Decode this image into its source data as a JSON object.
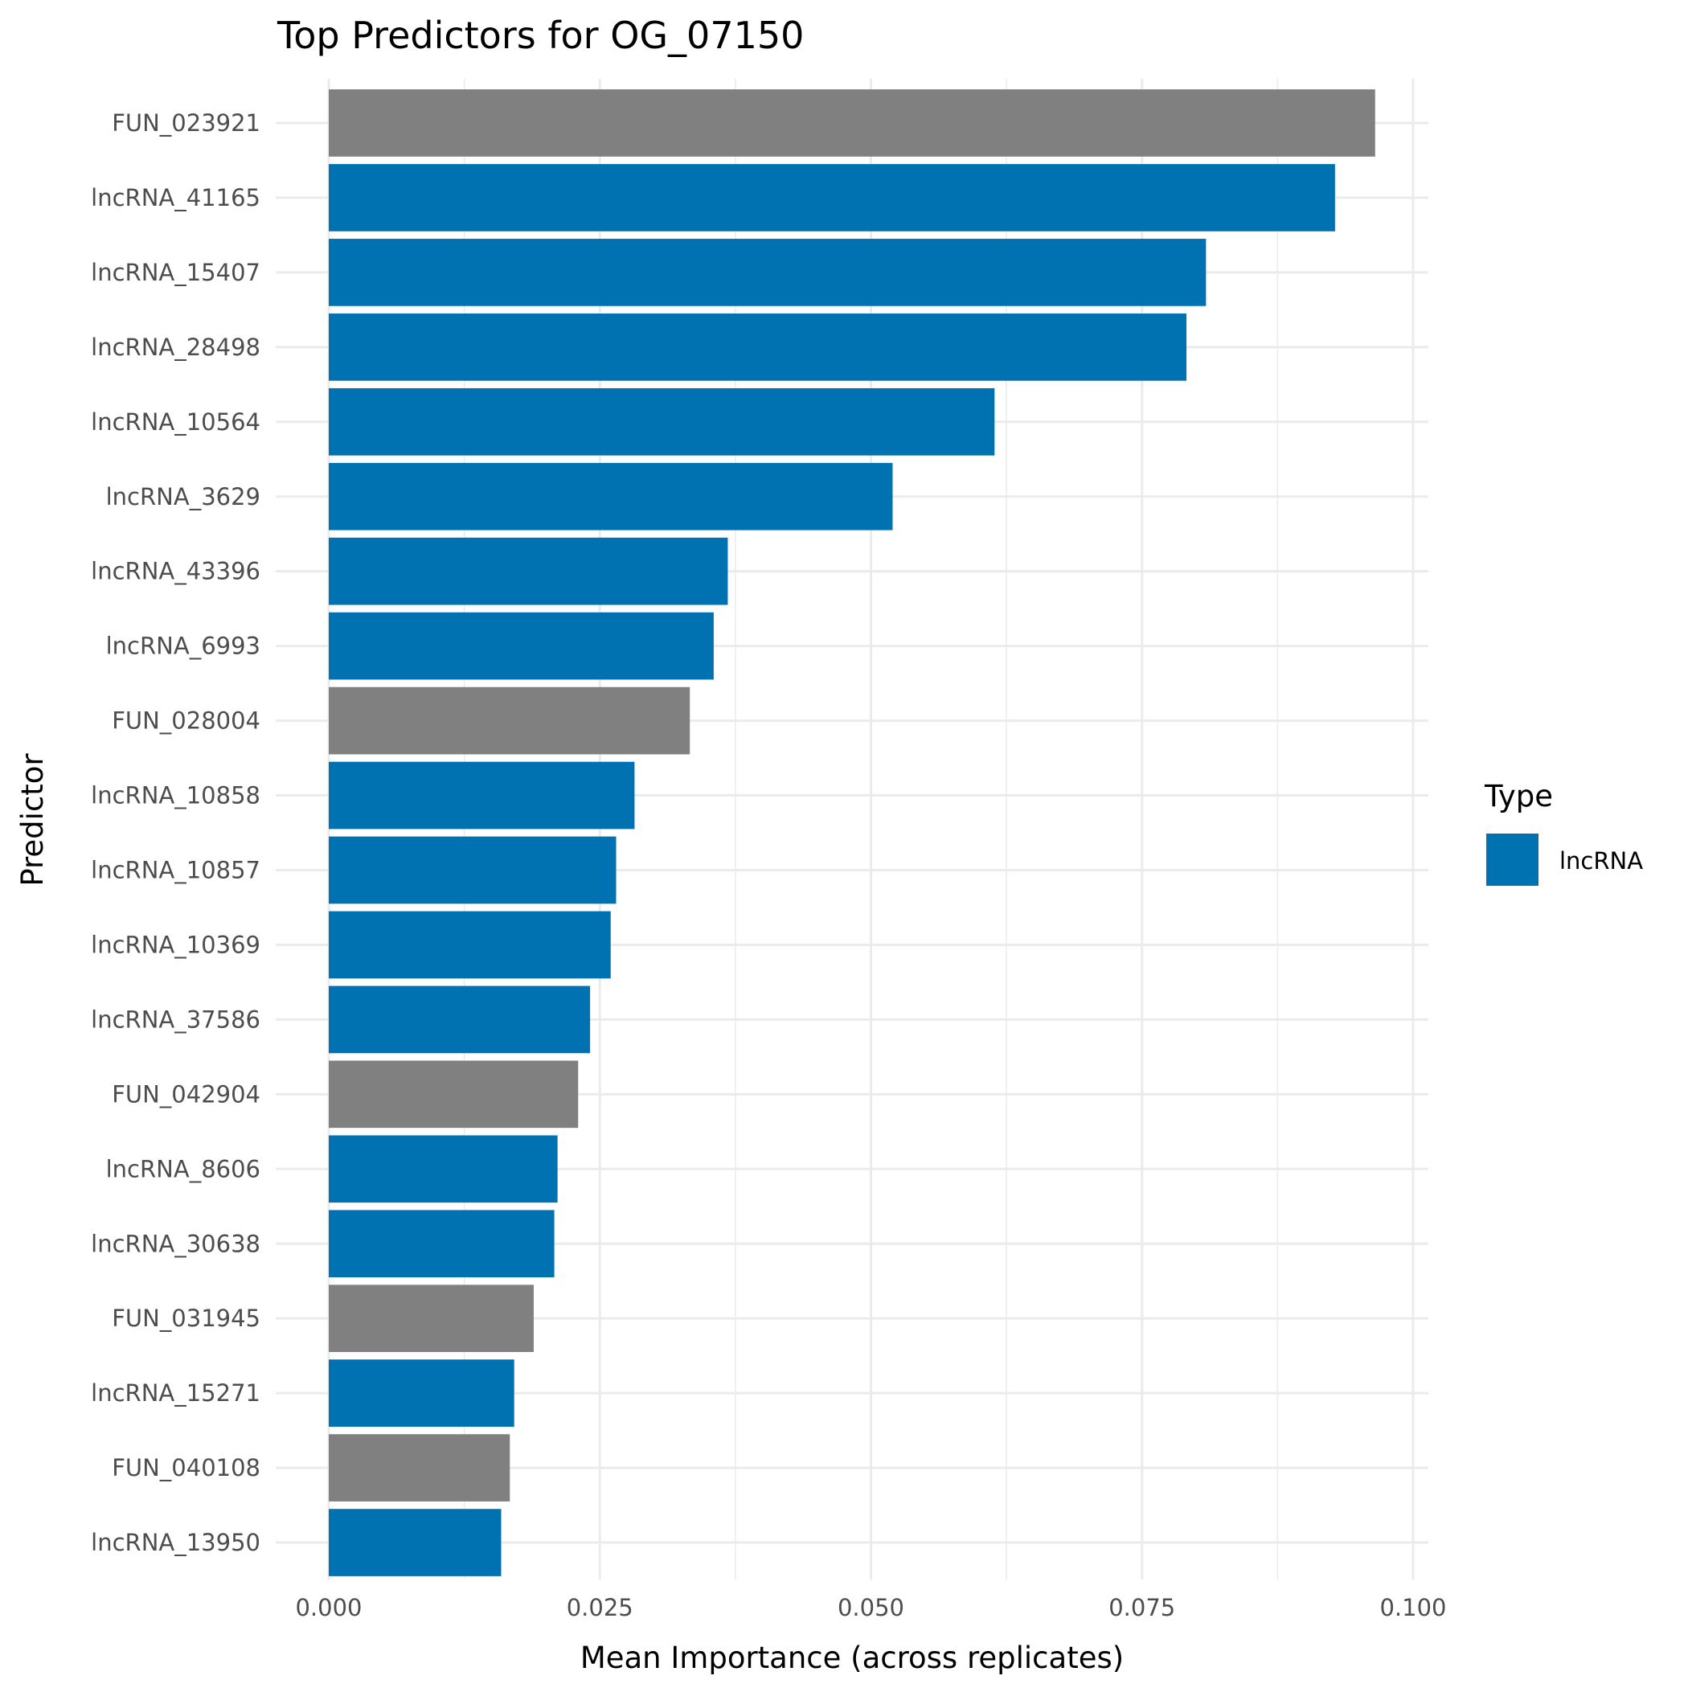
{
  "chart_data": {
    "type": "bar",
    "orientation": "horizontal",
    "title": "Top Predictors for OG_07150",
    "xlabel": "Mean Importance (across replicates)",
    "ylabel": "Predictor",
    "xlim": [
      0,
      0.1
    ],
    "xticks": [
      "0.000",
      "0.025",
      "0.050",
      "0.075",
      "0.100"
    ],
    "xtick_values": [
      0,
      0.025,
      0.05,
      0.075,
      0.1
    ],
    "grid": true,
    "legend": {
      "title": "Type",
      "position": "right",
      "entries": [
        {
          "label": "lncRNA",
          "color": "#0072B2"
        }
      ]
    },
    "colors": {
      "lncRNA": "#0072B2",
      "FUN": "#808080"
    },
    "categories": [
      "FUN_023921",
      "lncRNA_41165",
      "lncRNA_15407",
      "lncRNA_28498",
      "lncRNA_10564",
      "lncRNA_3629",
      "lncRNA_43396",
      "lncRNA_6993",
      "FUN_028004",
      "lncRNA_10858",
      "lncRNA_10857",
      "lncRNA_10369",
      "lncRNA_37586",
      "FUN_042904",
      "lncRNA_8606",
      "lncRNA_30638",
      "FUN_031945",
      "lncRNA_15271",
      "FUN_040108",
      "lncRNA_13950"
    ],
    "types": [
      "FUN",
      "lncRNA",
      "lncRNA",
      "lncRNA",
      "lncRNA",
      "lncRNA",
      "lncRNA",
      "lncRNA",
      "FUN",
      "lncRNA",
      "lncRNA",
      "lncRNA",
      "lncRNA",
      "FUN",
      "lncRNA",
      "lncRNA",
      "FUN",
      "lncRNA",
      "FUN",
      "lncRNA"
    ],
    "values": [
      0.0965,
      0.0928,
      0.0809,
      0.0791,
      0.0614,
      0.052,
      0.0368,
      0.0355,
      0.0333,
      0.0282,
      0.0265,
      0.026,
      0.0241,
      0.023,
      0.0211,
      0.0208,
      0.0189,
      0.0171,
      0.0167,
      0.0159
    ]
  }
}
